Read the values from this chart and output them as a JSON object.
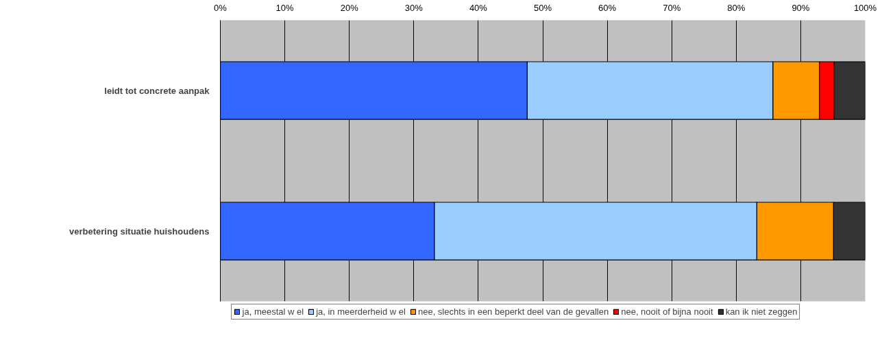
{
  "chart_data": {
    "type": "bar",
    "orientation": "horizontal",
    "stacked": true,
    "categories": [
      "leidt tot concrete aanpak",
      "verbetering situatie huishoudens"
    ],
    "series": [
      {
        "name": "ja, meestal w el",
        "color": "#3366ff",
        "values": [
          47.6,
          33.2
        ]
      },
      {
        "name": "ja, in meerderheid w el",
        "color": "#99ccff",
        "values": [
          38.1,
          50.0
        ]
      },
      {
        "name": "nee, slechts in een beperkt deel van de gevallen",
        "color": "#ff9900",
        "values": [
          7.2,
          11.9
        ]
      },
      {
        "name": "nee, nooit of bijna nooit",
        "color": "#ff0000",
        "values": [
          2.3,
          0
        ]
      },
      {
        "name": "kan ik niet zeggen",
        "color": "#333333",
        "values": [
          4.8,
          4.9
        ]
      }
    ],
    "xlim": [
      0,
      100
    ],
    "xticks": [
      {
        "value": 0,
        "label": "0%"
      },
      {
        "value": 10,
        "label": "10%"
      },
      {
        "value": 20,
        "label": "20%"
      },
      {
        "value": 30,
        "label": "30%"
      },
      {
        "value": 40,
        "label": "40%"
      },
      {
        "value": 50,
        "label": "50%"
      },
      {
        "value": 60,
        "label": "60%"
      },
      {
        "value": 70,
        "label": "70%"
      },
      {
        "value": 80,
        "label": "80%"
      },
      {
        "value": 90,
        "label": "90%"
      },
      {
        "value": 100,
        "label": "100%"
      }
    ],
    "grid": "x",
    "legend": "bottom"
  }
}
